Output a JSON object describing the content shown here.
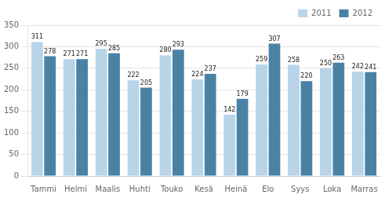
{
  "chart_data": {
    "type": "bar",
    "categories": [
      "Tammi",
      "Helmi",
      "Maalis",
      "Huhti",
      "Touko",
      "Kesä",
      "Heinä",
      "Elo",
      "Syys",
      "Loka",
      "Marras"
    ],
    "series": [
      {
        "name": "2011",
        "color": "#b8d4e8",
        "values": [
          311,
          271,
          295,
          222,
          280,
          224,
          142,
          259,
          258,
          250,
          242
        ]
      },
      {
        "name": "2012",
        "color": "#4a82a6",
        "values": [
          278,
          271,
          285,
          205,
          293,
          237,
          179,
          307,
          220,
          263,
          241
        ]
      }
    ],
    "ylim": [
      0,
      350
    ],
    "yticks": [
      0,
      50,
      100,
      150,
      200,
      250,
      300,
      350
    ],
    "grid": true,
    "legend": "upper right",
    "data_labels": true
  }
}
